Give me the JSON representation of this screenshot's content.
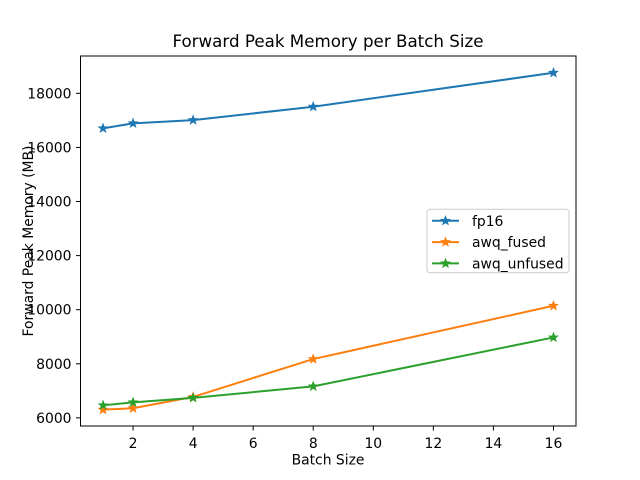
{
  "chart_data": {
    "type": "line",
    "title": "Forward Peak Memory per Batch Size",
    "xlabel": "Batch Size",
    "ylabel": "Forward Peak Memory (MB)",
    "x": [
      1,
      2,
      4,
      8,
      16
    ],
    "series": [
      {
        "name": "fp16",
        "color": "#1f77b4",
        "marker": "star",
        "values": [
          16705,
          16890,
          17010,
          17505,
          18760
        ]
      },
      {
        "name": "awq_fused",
        "color": "#ff7f0e",
        "marker": "star",
        "values": [
          6305,
          6355,
          6775,
          8175,
          10145
        ]
      },
      {
        "name": "awq_unfused",
        "color": "#2ca02c",
        "marker": "star",
        "values": [
          6465,
          6575,
          6740,
          7165,
          8975
        ]
      }
    ],
    "xticks": [
      2,
      4,
      6,
      8,
      10,
      12,
      14,
      16
    ],
    "yticks": [
      6000,
      8000,
      10000,
      12000,
      14000,
      16000,
      18000
    ],
    "xlim": [
      0.25,
      16.75
    ],
    "ylim": [
      5700,
      19380
    ],
    "grid": false,
    "legend": {
      "position": "center-right",
      "entries": [
        "fp16",
        "awq_fused",
        "awq_unfused"
      ]
    },
    "colors": {
      "background": "#ffffff",
      "axis": "#000000",
      "legend_border": "#cccccc"
    }
  }
}
